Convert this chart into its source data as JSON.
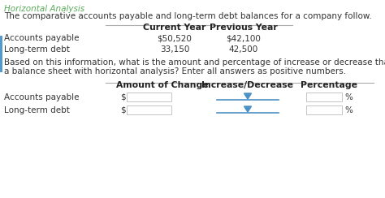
{
  "title": "Horizontal Analysis",
  "title_color": "#5aaa5a",
  "intro_text": "The comparative accounts payable and long-term debt balances for a company follow.",
  "t1_header_cy": "Current Year",
  "t1_header_py": "Previous Year",
  "table1_rows": [
    [
      "Accounts payable",
      "$50,520",
      "$42,100"
    ],
    [
      "Long-term debt",
      "33,150",
      "42,500"
    ]
  ],
  "body_text1": "Based on this information, what is the amount and percentage of increase or decrease that would be shown on",
  "body_text2": "a balance sheet with horizontal analysis? Enter all answers as positive numbers.",
  "t2_header_aoc": "Amount of Change",
  "t2_header_id": "Increase/Decrease",
  "t2_header_pct": "Percentage",
  "table2_rows": [
    [
      "Accounts payable"
    ],
    [
      "Long-term debt"
    ]
  ],
  "bg_color": "#ffffff",
  "text_color": "#333333",
  "bold_color": "#222222",
  "font_size": 7.5,
  "bold_font_size": 7.8,
  "box_edge_color": "#bbbbbb",
  "dropdown_line_color": "#4a90c4",
  "dropdown_tri_color": "#4a90c4"
}
